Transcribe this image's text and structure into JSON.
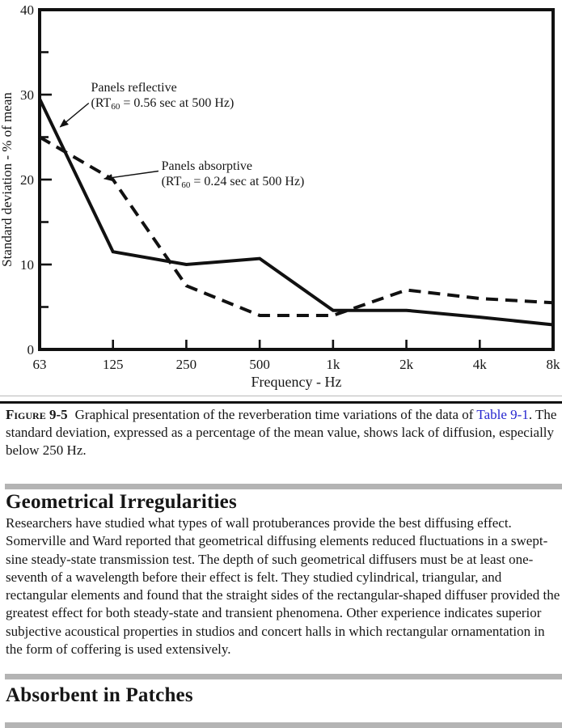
{
  "figure": {
    "caption": {
      "label": "Figure 9-5",
      "text_before_link": "Graphical presentation of the reverberation time variations of the data of ",
      "link_text": "Table 9-1",
      "text_after_link": ". The standard deviation, expressed as a percentage of the mean value, shows lack of diffusion, especially below 250 Hz.",
      "link_color": "#2626cf"
    }
  },
  "sections": [
    {
      "heading": "Geometrical Irregularities",
      "body": "Researchers have studied what types of wall protuberances provide the best diffusing effect. Somerville and Ward reported that geometrical diffusing elements reduced fluctuations in a swept-sine steady-state transmission test. The depth of such geometrical diffusers must be at least one-seventh of a wavelength before their effect is felt. They studied cylindrical, triangular, and rectangular elements and found that the straight sides of the rectangular-shaped diffuser provided the greatest effect for both steady-state and transient phenomena. Other experience indicates superior subjective acoustical properties in studios and concert halls in which rectangular ornamentation in the form of coffering is used extensively."
    },
    {
      "heading": "Absorbent in Patches",
      "body": ""
    }
  ],
  "chart_data": {
    "type": "line",
    "x_categories": [
      "63",
      "125",
      "250",
      "500",
      "1k",
      "2k",
      "4k",
      "8k"
    ],
    "xlabel": "Frequency - Hz",
    "ylabel": "Standard deviation - % of mean",
    "ylim": [
      0,
      40
    ],
    "y_major_ticks": [
      0,
      10,
      20,
      30,
      40
    ],
    "y_minor_ticks": [
      5,
      15,
      25,
      35
    ],
    "grid": false,
    "legend_position": "none",
    "line_color": "#111111",
    "series": [
      {
        "name": "Panels reflective (RT60 = 0.56 sec at 500 Hz)",
        "style": "solid",
        "values": [
          29.5,
          11.5,
          10.0,
          10.7,
          4.6,
          4.6,
          3.8,
          2.9
        ]
      },
      {
        "name": "Panels absorptive (RT60 = 0.24 sec at 500 Hz)",
        "style": "dashed",
        "values": [
          25.0,
          20.0,
          7.5,
          4.0,
          4.0,
          7.0,
          6.0,
          5.5
        ]
      }
    ],
    "annotations": [
      {
        "lines": [
          [
            {
              "t": "Panels reflective"
            }
          ],
          [
            {
              "t": "(RT"
            },
            {
              "sub": "60"
            },
            {
              "t": " = 0.56 sec at 500 Hz)"
            }
          ]
        ],
        "text_pos": {
          "oct": 0.7,
          "val": 31.6
        },
        "arrow": {
          "from": {
            "oct": 0.67,
            "val": 29.0
          },
          "to": {
            "oct": 0.28,
            "val": 26.2
          }
        }
      },
      {
        "lines": [
          [
            {
              "t": "Panels absorptive"
            }
          ],
          [
            {
              "t": "(RT"
            },
            {
              "sub": "60"
            },
            {
              "t": " = 0.24 sec at 500 Hz)"
            }
          ]
        ],
        "text_pos": {
          "oct": 1.66,
          "val": 22.4
        },
        "arrow": {
          "from": {
            "oct": 1.62,
            "val": 21.0
          },
          "to": {
            "oct": 0.88,
            "val": 20.1
          }
        }
      }
    ]
  }
}
